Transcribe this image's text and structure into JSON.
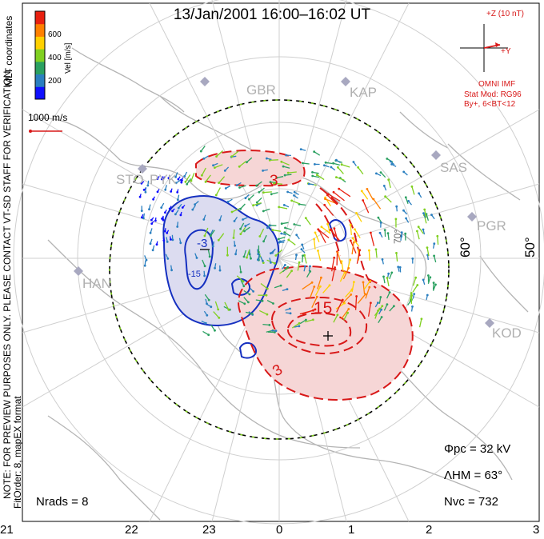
{
  "title": "13/Jan/2001 16:00–16:02 UT",
  "colorbar": {
    "unit_label": "Vel [m/s]",
    "tick_labels": [
      "600",
      "400",
      "200"
    ],
    "colors": [
      "#1010ff",
      "#2a7fc0",
      "#2aa060",
      "#80d020",
      "#ffd000",
      "#ff8000",
      "#e82010"
    ]
  },
  "left_notes": {
    "coords": "MLT coordinates",
    "notice": "NOTE: FOR PREVIEW PURPOSES ONLY. PLEASE CONTACT VT-SD STAFF FOR VERIFICATION.",
    "fit": "FitOrder: 8,  mapEX format"
  },
  "scale_vector_label": "1000 m/s",
  "imf": {
    "axis_label": "+Z (10 nT)",
    "y_label": "+Y",
    "source": "OMNI IMF",
    "model": "Stat Mod: RG96",
    "condition": "By+, 6<BT<12"
  },
  "stations": [
    {
      "name": "GBR"
    },
    {
      "name": "KAP"
    },
    {
      "name": "SAS"
    },
    {
      "name": "STO"
    },
    {
      "name": "PYK"
    },
    {
      "name": "PGR"
    },
    {
      "name": "HAN"
    },
    {
      "name": "KOD"
    }
  ],
  "latitude_labels": [
    "60°",
    "50°",
    "70°"
  ],
  "contour_labels": [
    "-3",
    "-15",
    "3",
    "15",
    "3"
  ],
  "stats": {
    "phi_pc": "Φpc  =  32  kV",
    "lambda_hm": "ΛHM  =  63°",
    "n_vc": "Nvc  =  732",
    "n_rads": "Nrads  =  8"
  },
  "mlt_labels": [
    "21",
    "22",
    "23",
    "0",
    "1",
    "2",
    "3"
  ],
  "colors": {
    "negative_fill": "#dcdcf0",
    "positive_fill": "#f6d6d6",
    "negative_contour": "#1530c0",
    "positive_contour": "#d81818",
    "coastline": "#b4b4b4",
    "grid": "#cfcfcf"
  }
}
